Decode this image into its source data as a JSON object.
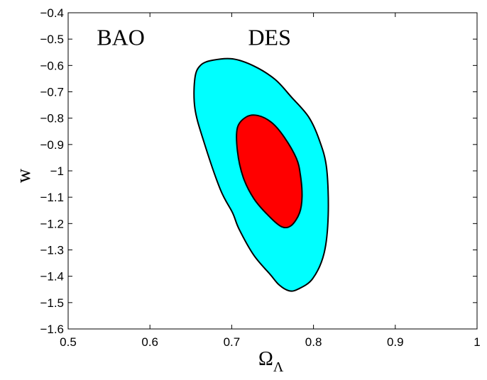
{
  "chart_data": {
    "type": "contour",
    "title": "",
    "xlabel": "Ω",
    "xlabel_sub": "Λ",
    "ylabel": "w",
    "xlim": [
      0.5,
      1.0
    ],
    "ylim": [
      -1.6,
      -0.4
    ],
    "xticks": [
      0.5,
      0.6,
      0.7,
      0.8,
      0.9,
      1
    ],
    "xtick_labels": [
      "0.5",
      "0.6",
      "0.7",
      "0.8",
      "0.9",
      "1"
    ],
    "yticks": [
      -1.6,
      -1.5,
      -1.4,
      -1.3,
      -1.2,
      -1.1,
      -1,
      -0.9,
      -0.8,
      -0.7,
      -0.6,
      -0.5,
      -0.4
    ],
    "ytick_labels": [
      "-1.6",
      "-1.5",
      "-1.4",
      "-1.3",
      "-1.2",
      "-1.1",
      "-1",
      "-0.9",
      "-0.8",
      "-0.7",
      "-0.6",
      "-0.5",
      "-0.4"
    ],
    "grid": false,
    "annotations": [
      {
        "text": "BAO",
        "x": 0.535,
        "y": -0.49
      },
      {
        "text": "DES",
        "x": 0.72,
        "y": -0.49
      }
    ],
    "contours": [
      {
        "level": "outer",
        "color": "#00ffff",
        "points": [
          [
            0.655,
            -0.648
          ],
          [
            0.662,
            -0.599
          ],
          [
            0.677,
            -0.58
          ],
          [
            0.701,
            -0.575
          ],
          [
            0.727,
            -0.602
          ],
          [
            0.753,
            -0.653
          ],
          [
            0.773,
            -0.72
          ],
          [
            0.794,
            -0.795
          ],
          [
            0.807,
            -0.882
          ],
          [
            0.816,
            -0.989
          ],
          [
            0.818,
            -1.167
          ],
          [
            0.813,
            -1.312
          ],
          [
            0.799,
            -1.409
          ],
          [
            0.781,
            -1.449
          ],
          [
            0.77,
            -1.455
          ],
          [
            0.758,
            -1.433
          ],
          [
            0.747,
            -1.393
          ],
          [
            0.727,
            -1.32
          ],
          [
            0.709,
            -1.221
          ],
          [
            0.701,
            -1.159
          ],
          [
            0.686,
            -1.07
          ],
          [
            0.666,
            -0.89
          ],
          [
            0.655,
            -0.763
          ]
        ]
      },
      {
        "level": "inner",
        "color": "#ff0000",
        "points": [
          [
            0.707,
            -0.836
          ],
          [
            0.718,
            -0.795
          ],
          [
            0.732,
            -0.79
          ],
          [
            0.749,
            -0.817
          ],
          [
            0.764,
            -0.871
          ],
          [
            0.779,
            -0.952
          ],
          [
            0.784,
            -1.016
          ],
          [
            0.786,
            -1.097
          ],
          [
            0.783,
            -1.159
          ],
          [
            0.773,
            -1.207
          ],
          [
            0.761,
            -1.212
          ],
          [
            0.744,
            -1.167
          ],
          [
            0.727,
            -1.105
          ],
          [
            0.714,
            -1.024
          ],
          [
            0.707,
            -0.925
          ]
        ]
      }
    ]
  }
}
